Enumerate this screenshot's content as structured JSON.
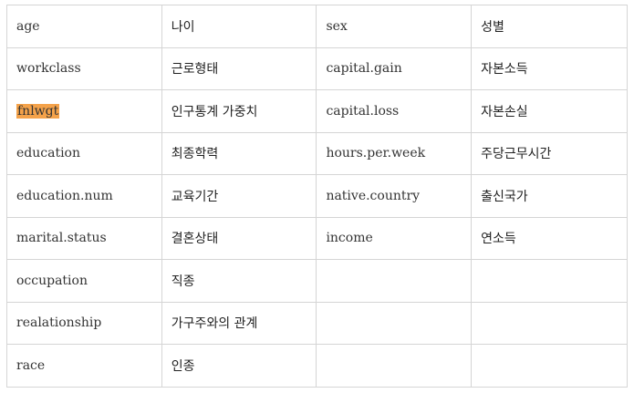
{
  "rows": [
    {
      "en1": "age",
      "ko1": "나이",
      "en2": "sex",
      "ko2": "성별"
    },
    {
      "en1": "workclass",
      "ko1": "근로형태",
      "en2": "capital.gain",
      "ko2": "자본소득"
    },
    {
      "en1": "fnlwgt",
      "ko1": "인구통계 가중치",
      "en2": "capital.loss",
      "ko2": "자본손실"
    },
    {
      "en1": "education",
      "ko1": "최종학력",
      "en2": "hours.per.week",
      "ko2": "주당근무시간"
    },
    {
      "en1": "education.num",
      "ko1": "교육기간",
      "en2": "native.country",
      "ko2": "출신국가"
    },
    {
      "en1": "marital.status",
      "ko1": "결혼상태",
      "en2": "income",
      "ko2": "연소득"
    },
    {
      "en1": "occupation",
      "ko1": "직종",
      "en2": "",
      "ko2": ""
    },
    {
      "en1": "realationship",
      "ko1": "가구주와의 관계",
      "en2": "",
      "ko2": ""
    },
    {
      "en1": "race",
      "ko1": "인종",
      "en2": "",
      "ko2": ""
    }
  ],
  "highlight_color": "#f4a24a"
}
